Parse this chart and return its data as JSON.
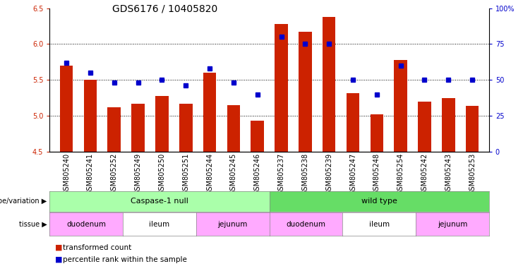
{
  "title": "GDS6176 / 10405820",
  "samples": [
    "GSM805240",
    "GSM805241",
    "GSM805252",
    "GSM805249",
    "GSM805250",
    "GSM805251",
    "GSM805244",
    "GSM805245",
    "GSM805246",
    "GSM805237",
    "GSM805238",
    "GSM805239",
    "GSM805247",
    "GSM805248",
    "GSM805254",
    "GSM805242",
    "GSM805243",
    "GSM805253"
  ],
  "bar_values": [
    5.7,
    5.5,
    5.12,
    5.17,
    5.28,
    5.17,
    5.6,
    5.15,
    4.93,
    6.28,
    6.17,
    6.38,
    5.32,
    5.02,
    5.78,
    5.2,
    5.25,
    5.14
  ],
  "percentile_values_pct": [
    62,
    55,
    48,
    48,
    50,
    46,
    58,
    48,
    40,
    80,
    75,
    75,
    50,
    40,
    60,
    50,
    50,
    50
  ],
  "bar_color": "#cc2200",
  "percentile_color": "#0000cc",
  "ylim_left": [
    4.5,
    6.5
  ],
  "yticks_left": [
    4.5,
    5.0,
    5.5,
    6.0,
    6.5
  ],
  "ylim_right": [
    0,
    100
  ],
  "yticks_right": [
    0,
    25,
    50,
    75,
    100
  ],
  "ytick_labels_right": [
    "0",
    "25",
    "50",
    "75",
    "100%"
  ],
  "ylabel_left_color": "#cc2200",
  "ylabel_right_color": "#0000cc",
  "grid_yticks": [
    5.0,
    5.5,
    6.0
  ],
  "genotype_groups": [
    {
      "label": "Caspase-1 null",
      "start": 0,
      "end": 9,
      "color": "#aaffaa"
    },
    {
      "label": "wild type",
      "start": 9,
      "end": 18,
      "color": "#66dd66"
    }
  ],
  "tissue_groups": [
    {
      "label": "duodenum",
      "start": 0,
      "end": 3,
      "color": "#ffaaff"
    },
    {
      "label": "ileum",
      "start": 3,
      "end": 6,
      "color": "#ffffff"
    },
    {
      "label": "jejunum",
      "start": 6,
      "end": 9,
      "color": "#ffaaff"
    },
    {
      "label": "duodenum",
      "start": 9,
      "end": 12,
      "color": "#ffaaff"
    },
    {
      "label": "ileum",
      "start": 12,
      "end": 15,
      "color": "#ffffff"
    },
    {
      "label": "jejunum",
      "start": 15,
      "end": 18,
      "color": "#ffaaff"
    }
  ],
  "legend_items": [
    {
      "label": "transformed count",
      "color": "#cc2200"
    },
    {
      "label": "percentile rank within the sample",
      "color": "#0000cc"
    }
  ],
  "bar_width": 0.55,
  "background_color": "#ffffff",
  "title_fontsize": 10,
  "tick_fontsize": 7,
  "label_fontsize": 7.5
}
